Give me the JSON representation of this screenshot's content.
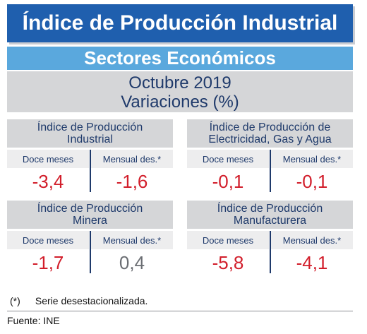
{
  "header": {
    "title": "Índice de Producción Industrial",
    "subtitle": "Sectores Económicos",
    "period_line1": "Octubre 2019",
    "period_line2": "Variaciones (%)"
  },
  "panels": [
    {
      "title_line1": "Índice de Producción",
      "title_line2": "Industrial",
      "left_label": "Doce meses",
      "right_label": "Mensual des.*",
      "left_value": "-3,4",
      "right_value": "-1,6"
    },
    {
      "title_line1": "Índice de Producción de",
      "title_line2": "Electricidad, Gas y Agua",
      "left_label": "Doce meses",
      "right_label": "Mensual des.*",
      "left_value": "-0,1",
      "right_value": "-0,1"
    },
    {
      "title_line1": "Índice de Producción",
      "title_line2": "Minera",
      "left_label": "Doce meses",
      "right_label": "Mensual des.*",
      "left_value": "-1,7",
      "right_value": "0,4"
    },
    {
      "title_line1": "Índice de Producción",
      "title_line2": "Manufacturera",
      "left_label": "Doce meses",
      "right_label": "Mensual des.*",
      "left_value": "-5,8",
      "right_value": "-4,1"
    }
  ],
  "footer": {
    "note_mark": "(*)",
    "note_text": "Serie desestacionalizada.",
    "source": "Fuente: INE"
  },
  "colors": {
    "title_bg": "#1f5fae",
    "subtitle_bg": "#5aa8dd",
    "panel_head_bg": "#d5d6d8",
    "negative": "#d21e2b",
    "neutral": "#6b6e73"
  }
}
